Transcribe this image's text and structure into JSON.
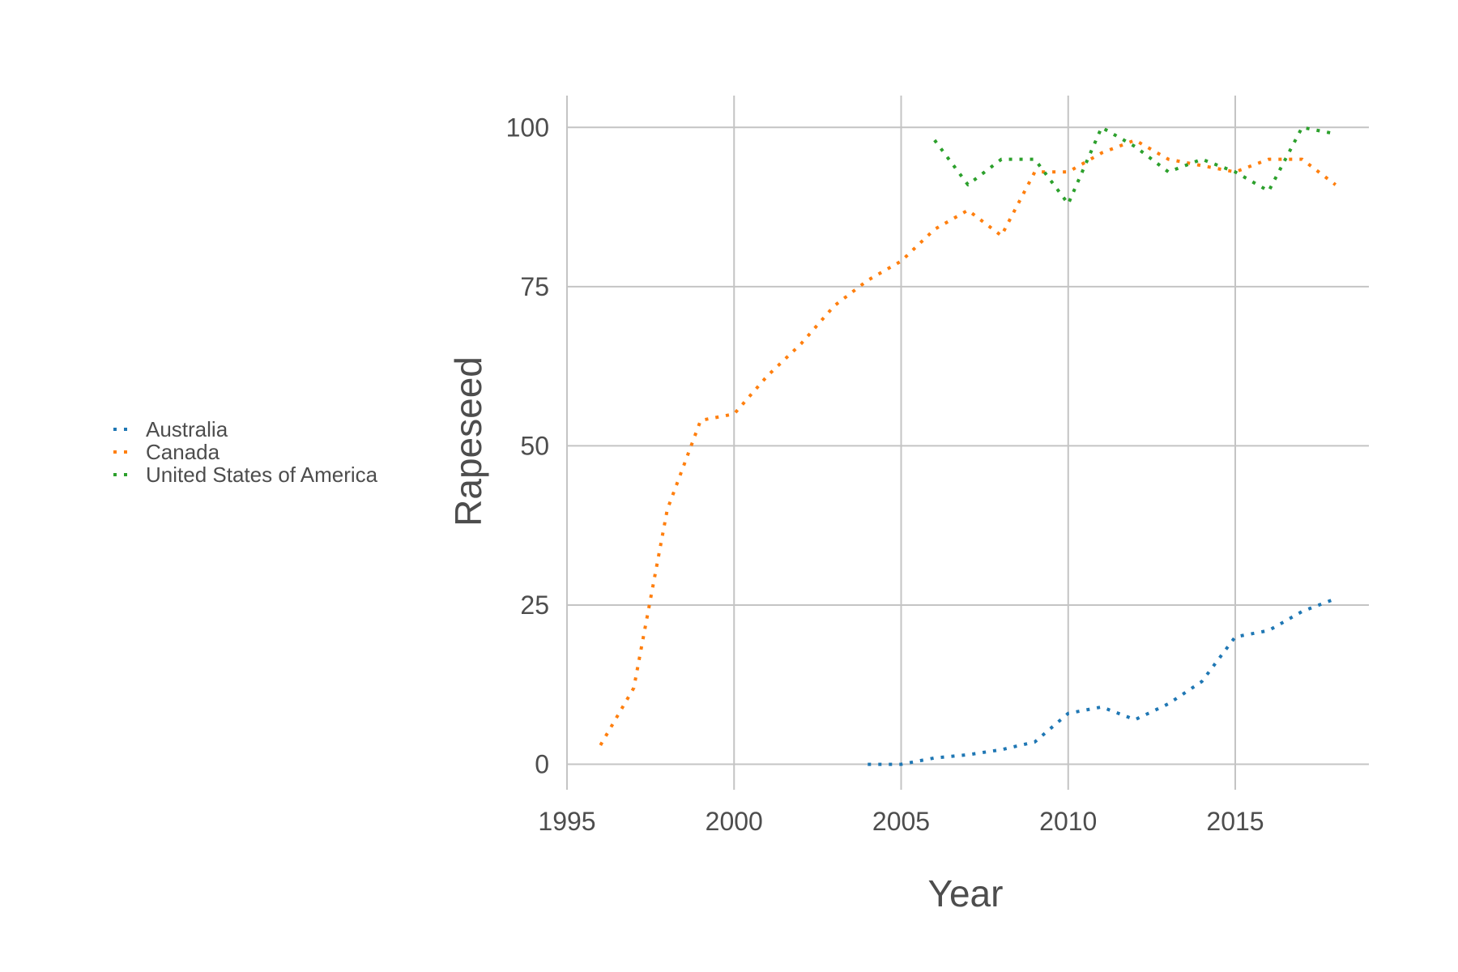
{
  "chart_data": {
    "type": "line",
    "xlabel": "Year",
    "ylabel": "Rapeseed",
    "xlim": [
      1995,
      2019
    ],
    "ylim": [
      -4,
      105
    ],
    "xticks": [
      1995,
      2000,
      2005,
      2010,
      2015
    ],
    "yticks": [
      0,
      25,
      50,
      75,
      100
    ],
    "grid": true,
    "legend_position": "left",
    "series": [
      {
        "name": "Australia",
        "color": "#1f77b4",
        "points": [
          [
            2004,
            0
          ],
          [
            2005,
            0
          ],
          [
            2006,
            1
          ],
          [
            2007,
            1.5
          ],
          [
            2008,
            2.3
          ],
          [
            2009,
            3.5
          ],
          [
            2010,
            8
          ],
          [
            2011,
            9
          ],
          [
            2012,
            7
          ],
          [
            2013,
            9.5
          ],
          [
            2014,
            13
          ],
          [
            2015,
            20
          ],
          [
            2016,
            21
          ],
          [
            2017,
            24
          ],
          [
            2018,
            26
          ]
        ]
      },
      {
        "name": "Canada",
        "color": "#ff7f0e",
        "points": [
          [
            1996,
            3
          ],
          [
            1997,
            12
          ],
          [
            1998,
            40
          ],
          [
            1999,
            54
          ],
          [
            2000,
            55
          ],
          [
            2001,
            61
          ],
          [
            2002,
            66
          ],
          [
            2003,
            72
          ],
          [
            2004,
            76
          ],
          [
            2005,
            79
          ],
          [
            2006,
            84
          ],
          [
            2007,
            87
          ],
          [
            2008,
            83
          ],
          [
            2009,
            93
          ],
          [
            2010,
            93
          ],
          [
            2011,
            96
          ],
          [
            2012,
            98
          ],
          [
            2013,
            95
          ],
          [
            2014,
            94
          ],
          [
            2015,
            93
          ],
          [
            2016,
            95
          ],
          [
            2017,
            95
          ],
          [
            2018,
            91
          ]
        ]
      },
      {
        "name": "United States of America",
        "color": "#2ca02c",
        "points": [
          [
            2006,
            98
          ],
          [
            2007,
            91
          ],
          [
            2008,
            95
          ],
          [
            2009,
            95
          ],
          [
            2010,
            88
          ],
          [
            2011,
            100
          ],
          [
            2012,
            97
          ],
          [
            2013,
            93
          ],
          [
            2014,
            95
          ],
          [
            2015,
            93
          ],
          [
            2016,
            90
          ],
          [
            2017,
            100
          ],
          [
            2018,
            99
          ]
        ]
      }
    ]
  }
}
